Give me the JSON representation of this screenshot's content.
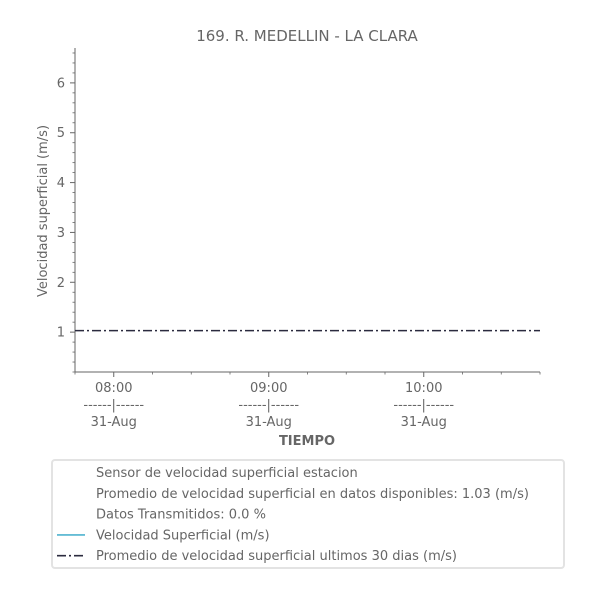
{
  "chart_data": {
    "type": "line",
    "title": "169. R. MEDELLIN - LA CLARA",
    "xlabel": "TIEMPO",
    "ylabel": "Velocidad superficial (m/s)",
    "ylim": [
      0.2,
      6.7
    ],
    "y_ticks": [
      1,
      2,
      3,
      4,
      5,
      6
    ],
    "xlim": [
      "2023-08-31 07:45",
      "2023-08-31 10:45"
    ],
    "x_ticks": [
      {
        "time": "2023-08-31 08:00",
        "top": "08:00",
        "mid": "------|------",
        "bottom": "31-Aug"
      },
      {
        "time": "2023-08-31 09:00",
        "top": "09:00",
        "mid": "------|------",
        "bottom": "31-Aug"
      },
      {
        "time": "2023-08-31 10:00",
        "top": "10:00",
        "mid": "------|------",
        "bottom": "31-Aug"
      }
    ],
    "series": [
      {
        "name": "Velocidad Superficial (m/s)",
        "color": "#4fb3cf",
        "style": "solid",
        "points": []
      },
      {
        "name": "Promedio de velocidad superficial ultimos 30 dias (m/s)",
        "color": "#2b2b3f",
        "style": "dashdot",
        "constant": 1.03
      }
    ],
    "legend": {
      "placement": "bottom",
      "text_entries": [
        "Sensor de velocidad superficial estacion",
        "Promedio de velocidad superficial en datos disponibles: 1.03 (m/s)",
        "Datos Transmitidos: 0.0 %"
      ]
    },
    "grid": false
  }
}
